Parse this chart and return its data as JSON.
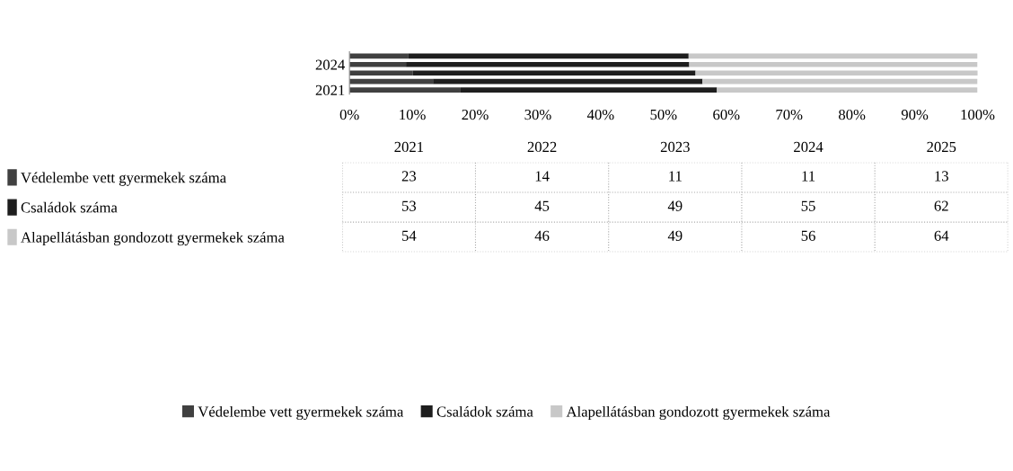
{
  "chart_data": [
    {
      "type": "bar",
      "orientation": "horizontal",
      "stacked": true,
      "categories": [
        null,
        "2024",
        null,
        null,
        "2021"
      ],
      "series": [
        {
          "name": "Védelembe vett gyermekek száma",
          "color": "#404040",
          "values": [
            9.4,
            9.0,
            10.1,
            13.3,
            17.7
          ]
        },
        {
          "name": "Családok száma",
          "color": "#1e1e1e",
          "values": [
            44.6,
            45.1,
            45.0,
            42.9,
            40.8
          ]
        },
        {
          "name": "Alapellátásban gondozott gyermekek száma",
          "color": "#c8c8c8",
          "values": [
            46.0,
            45.9,
            45.0,
            43.8,
            41.5
          ]
        }
      ],
      "xlim": [
        0,
        100
      ],
      "xticks": [
        {
          "value": 0,
          "label": "0%"
        },
        {
          "value": 10,
          "label": "10%"
        },
        {
          "value": 20,
          "label": "20%"
        },
        {
          "value": 30,
          "label": "30%"
        },
        {
          "value": 40,
          "label": "40%"
        },
        {
          "value": 50,
          "label": "50%"
        },
        {
          "value": 60,
          "label": "60%"
        },
        {
          "value": 70,
          "label": "70%"
        },
        {
          "value": 80,
          "label": "80%"
        },
        {
          "value": 90,
          "label": "90%"
        },
        {
          "value": 100,
          "label": "100%"
        }
      ],
      "legend": "bottom"
    },
    {
      "type": "heatmap",
      "categories": [
        "2021",
        "2022",
        "2023",
        "2024",
        "2025"
      ],
      "y_categories": [
        "Védelembe vett gyermekek száma",
        "Családok száma",
        "Alapellátásban gondozott gyermekek száma"
      ],
      "cells": [
        [
          23,
          14,
          11,
          11,
          13
        ],
        [
          53,
          45,
          49,
          55,
          62
        ],
        [
          54,
          46,
          49,
          56,
          64
        ]
      ],
      "data_labels": true
    }
  ]
}
